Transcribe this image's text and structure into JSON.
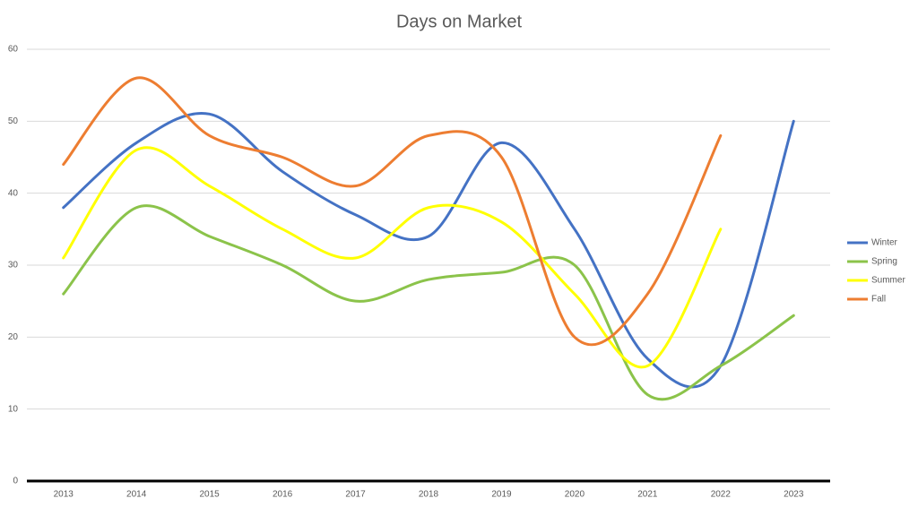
{
  "chart_data": {
    "type": "line",
    "title": "Days on Market",
    "categories": [
      "2013",
      "2014",
      "2015",
      "2016",
      "2017",
      "2018",
      "2019",
      "2020",
      "2021",
      "2022",
      "2023"
    ],
    "series": [
      {
        "name": "Winter",
        "color": "#4472c4",
        "values": [
          38,
          47,
          51,
          43,
          37,
          34,
          47,
          35,
          17,
          16,
          50
        ]
      },
      {
        "name": "Spring",
        "color": "#8bc34a",
        "values": [
          26,
          38,
          34,
          30,
          25,
          28,
          29,
          30,
          12,
          16,
          23
        ]
      },
      {
        "name": "Summer",
        "color": "#ffff00",
        "values": [
          31,
          46,
          41,
          35,
          31,
          38,
          36,
          26,
          16,
          35,
          null
        ]
      },
      {
        "name": "Fall",
        "color": "#ed7d31",
        "values": [
          44,
          56,
          48,
          45,
          41,
          48,
          45,
          20,
          26,
          48,
          null
        ]
      }
    ],
    "ylim": [
      0,
      60
    ],
    "yticks": [
      0,
      10,
      20,
      30,
      40,
      50,
      60
    ],
    "grid": true,
    "smooth": true,
    "legend": "right"
  }
}
